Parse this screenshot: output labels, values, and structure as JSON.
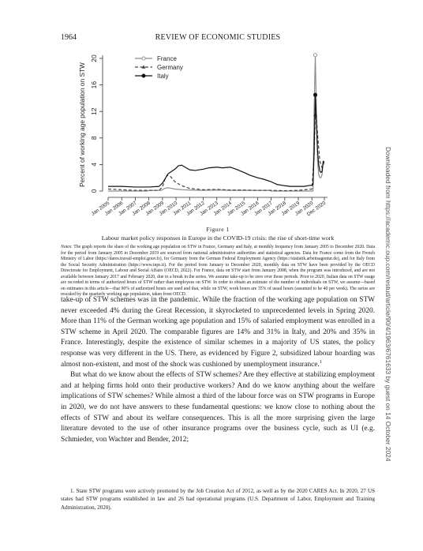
{
  "running_head": {
    "page_number": "1964",
    "journal": "REVIEW OF ECONOMIC STUDIES"
  },
  "side_note": "Downloaded from https://academic.oup.com/restud/article/90/4/1963/6761633 by guest on 14 October 2024",
  "figure": {
    "label": "Figure 1",
    "caption": "Labour market policy responses in Europe in the COVID-19 crisis: the rise of short-time work",
    "notes_label": "Notes",
    "notes": "The graph reports the share of the working age population on STW in France, Germany and Italy, at monthly frequency from January 2005 to December 2020. Data for the period from January 2005 to December 2019 are sourced from national administrative authorities and statistical agencies. Data for France come from the French Ministry of Labor (https://dares.travail-emploi.gouv.fr), for Germany from the German Federal Employment Agency (https://statistik.arbeitsagentur.de), and for Italy from the Social Security Administration (https://www.inps.it). For the period from January to December 2020, monthly data on STW have been provided by the OECD Directorate for Employment, Labour and Social Affairs (OECD, 2022). For France, data on STW start from January 2008, when the program was introduced, and are not available between January 2017 and February 2020, due to a break in the series. We assume take-up to be zero over those periods. Prior to 2020, Italian data on STW usage are recorded in terms of authorized hours of STW rather than employees on STW. In order to obtain an estimate of the number of individuals on STW, we assume—based on estimates in this article—that 90% of authorized hours are used and that, while on STW, work hours are 35% of usual hours (assumed to be 40 per week). The series are rescaled by the quarterly working age population, taken from OECD."
  },
  "chart_data": {
    "type": "line",
    "ylabel": "Percent of working age population on STW",
    "xlabel": "",
    "ylim": [
      0,
      20
    ],
    "y_ticks": [
      "0",
      "4",
      "8",
      "12",
      "16",
      "20"
    ],
    "x_ticks": [
      "Jan 2005",
      "Jan 2006",
      "Jan 2007",
      "Jan 2008",
      "Jan 2009",
      "Jan 2010",
      "Jan 2011",
      "Jan 2012",
      "Jan 2013",
      "Jan 2014",
      "Jan 2015",
      "Jan 2016",
      "Jan 2017",
      "Jan 2018",
      "Jan 2019",
      "Jan 2020",
      "Dec 2020"
    ],
    "legend_position": "top-left",
    "grid": false,
    "series": [
      {
        "name": "France",
        "style": "solid-hollow-circle",
        "color": "#8c8c8c",
        "points": [
          [
            "2005-01",
            0
          ],
          [
            "2007-12",
            0
          ],
          [
            "2008-01",
            0.1
          ],
          [
            "2008-12",
            0.1
          ],
          [
            "2009-03",
            0.4
          ],
          [
            "2009-06",
            0.5
          ],
          [
            "2009-12",
            0.3
          ],
          [
            "2010-06",
            0.2
          ],
          [
            "2011-01",
            0.15
          ],
          [
            "2012-01",
            0.1
          ],
          [
            "2013-01",
            0.15
          ],
          [
            "2014-01",
            0.1
          ],
          [
            "2015-01",
            0.1
          ],
          [
            "2016-01",
            0.1
          ],
          [
            "2016-12",
            0.1
          ],
          [
            "2017-01",
            0
          ],
          [
            "2020-02",
            0
          ],
          [
            "2020-03",
            12.5
          ],
          [
            "2020-04",
            20.5
          ],
          [
            "2020-05",
            12.0
          ],
          [
            "2020-06",
            4.5
          ],
          [
            "2020-07",
            2.5
          ],
          [
            "2020-08",
            2.0
          ],
          [
            "2020-09",
            2.0
          ],
          [
            "2020-10",
            2.5
          ],
          [
            "2020-11",
            4.5
          ],
          [
            "2020-12",
            4.0
          ]
        ]
      },
      {
        "name": "Germany",
        "style": "dashed-filled-triangle",
        "color": "#444444",
        "points": [
          [
            "2005-01",
            0.3
          ],
          [
            "2006-01",
            0.2
          ],
          [
            "2007-01",
            0.1
          ],
          [
            "2008-01",
            0.1
          ],
          [
            "2008-10",
            0.1
          ],
          [
            "2009-01",
            0.6
          ],
          [
            "2009-03",
            1.7
          ],
          [
            "2009-05",
            2.4
          ],
          [
            "2009-08",
            2.2
          ],
          [
            "2009-12",
            1.4
          ],
          [
            "2010-06",
            0.8
          ],
          [
            "2011-01",
            0.4
          ],
          [
            "2012-01",
            0.2
          ],
          [
            "2013-01",
            0.25
          ],
          [
            "2014-01",
            0.15
          ],
          [
            "2015-01",
            0.15
          ],
          [
            "2016-01",
            0.1
          ],
          [
            "2017-01",
            0.1
          ],
          [
            "2018-01",
            0.05
          ],
          [
            "2019-01",
            0.1
          ],
          [
            "2020-01",
            0.3
          ],
          [
            "2020-03",
            5.5
          ],
          [
            "2020-04",
            11.5
          ],
          [
            "2020-05",
            11.0
          ],
          [
            "2020-06",
            8.5
          ],
          [
            "2020-07",
            6.5
          ],
          [
            "2020-08",
            4.5
          ],
          [
            "2020-09",
            4.0
          ],
          [
            "2020-10",
            3.5
          ],
          [
            "2020-11",
            4.2
          ],
          [
            "2020-12",
            4.5
          ]
        ]
      },
      {
        "name": "Italy",
        "style": "solid-filled-circle",
        "color": "#111111",
        "points": [
          [
            "2005-01",
            0.7
          ],
          [
            "2006-01",
            0.7
          ],
          [
            "2007-01",
            0.6
          ],
          [
            "2008-01",
            0.6
          ],
          [
            "2008-10",
            0.7
          ],
          [
            "2009-01",
            1.2
          ],
          [
            "2009-06",
            2.6
          ],
          [
            "2009-12",
            3.3
          ],
          [
            "2010-03",
            3.8
          ],
          [
            "2010-06",
            3.9
          ],
          [
            "2010-09",
            3.6
          ],
          [
            "2011-01",
            3.2
          ],
          [
            "2011-06",
            3.1
          ],
          [
            "2012-01",
            3.3
          ],
          [
            "2012-06",
            3.5
          ],
          [
            "2013-01",
            3.6
          ],
          [
            "2013-06",
            3.5
          ],
          [
            "2014-01",
            3.6
          ],
          [
            "2014-06",
            3.3
          ],
          [
            "2015-01",
            2.8
          ],
          [
            "2015-06",
            2.4
          ],
          [
            "2016-01",
            2.0
          ],
          [
            "2016-06",
            1.8
          ],
          [
            "2017-01",
            1.4
          ],
          [
            "2017-06",
            1.0
          ],
          [
            "2018-01",
            0.8
          ],
          [
            "2018-06",
            0.7
          ],
          [
            "2019-01",
            0.7
          ],
          [
            "2019-06",
            0.7
          ],
          [
            "2020-01",
            0.9
          ],
          [
            "2020-02",
            1.0
          ],
          [
            "2020-03",
            6.0
          ],
          [
            "2020-04",
            14.5
          ],
          [
            "2020-05",
            10.5
          ],
          [
            "2020-06",
            6.0
          ],
          [
            "2020-07",
            4.0
          ],
          [
            "2020-08",
            3.0
          ],
          [
            "2020-09",
            2.8
          ],
          [
            "2020-10",
            3.0
          ],
          [
            "2020-11",
            4.5
          ],
          [
            "2020-12",
            4.3
          ]
        ]
      }
    ]
  },
  "body": {
    "paragraph_1": "take-up of STW schemes was in the pandemic. While the fraction of the working age population on STW never exceeded 4% during the Great Recession, it skyrocketed to unprecedented levels in Spring 2020. More than 11% of the German working age population and 15% of salaried employment was enrolled in a STW scheme in April 2020. The comparable figures are 14% and 31% in Italy, and 20% and 35% in France. Interestingly, despite the existence of similar schemes in a majority of US states, the policy response was very different in the US. There, as evidenced by Figure 2, subsidized labour hoarding was almost non-existent, and most of the shock was cushioned by unemployment insurance.",
    "footnote_marker": "1",
    "paragraph_2": "But what do we know about the effects of STW schemes? Are they effective at stabilizing employment and at helping firms hold onto their productive workers? And do we know anything about the welfare implications of STW schemes? While almost a third of the labour force was on STW programs in Europe in 2020, we do not have answers to these fundamental questions: we know close to nothing about the effects of STW and about its welfare consequences. This is all the more surprising given the large literature devoted to the use of other insurance programs over the business cycle, such as UI (e.g. Schmieder, von Wachter and Bender, 2012;"
  },
  "footnote": "1. State STW programs were actively promoted by the Job Creation Act of 2012, as well as by the 2020 CARES Act. In 2020, 27 US states had STW programs established in law and 26 had operational programs (U.S. Department of Labor, Employment and Training Administration, 2020)."
}
